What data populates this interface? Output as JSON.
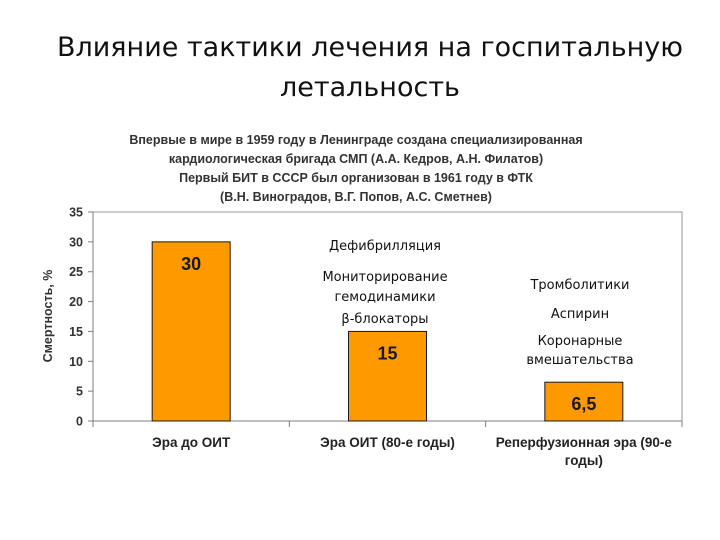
{
  "slide": {
    "title_line1": "Влияние тактики лечения на госпитальную",
    "title_line2": "летальность"
  },
  "chart_data": {
    "type": "bar",
    "header_lines": [
      "Впервые в мире в 1959 году в Ленинграде создана специализированная",
      "кардиологическая  бригада СМП (А.А. Кедров, А.Н. Филатов)",
      "Первый БИТ в СССР был организован в 1961 году в ФТК",
      "(В.Н. Виноградов,  В.Г. Попов, А.С. Сметнев)"
    ],
    "ylabel": "Смертность, %",
    "ylim": [
      0,
      35
    ],
    "yticks": [
      0,
      5,
      10,
      15,
      20,
      25,
      30,
      35
    ],
    "grid": false,
    "bar_color": "#FF9900",
    "bar_border_color": "#1a1a1a",
    "categories": [
      [
        "Эра до ОИТ"
      ],
      [
        "Эра ОИТ (80-е годы)"
      ],
      [
        "Реперфузионная эра (90-е",
        "годы)"
      ]
    ],
    "values": [
      30,
      15,
      6.5
    ],
    "value_labels": [
      "30",
      "15",
      "6,5"
    ],
    "annotations": [
      [
        "Дефибрилляция",
        "Мониторирование",
        "гемодинамики",
        "β-блокаторы"
      ],
      [
        "Тромболитики",
        "Аспирин",
        "Коронарные",
        "вмешательства"
      ]
    ]
  }
}
